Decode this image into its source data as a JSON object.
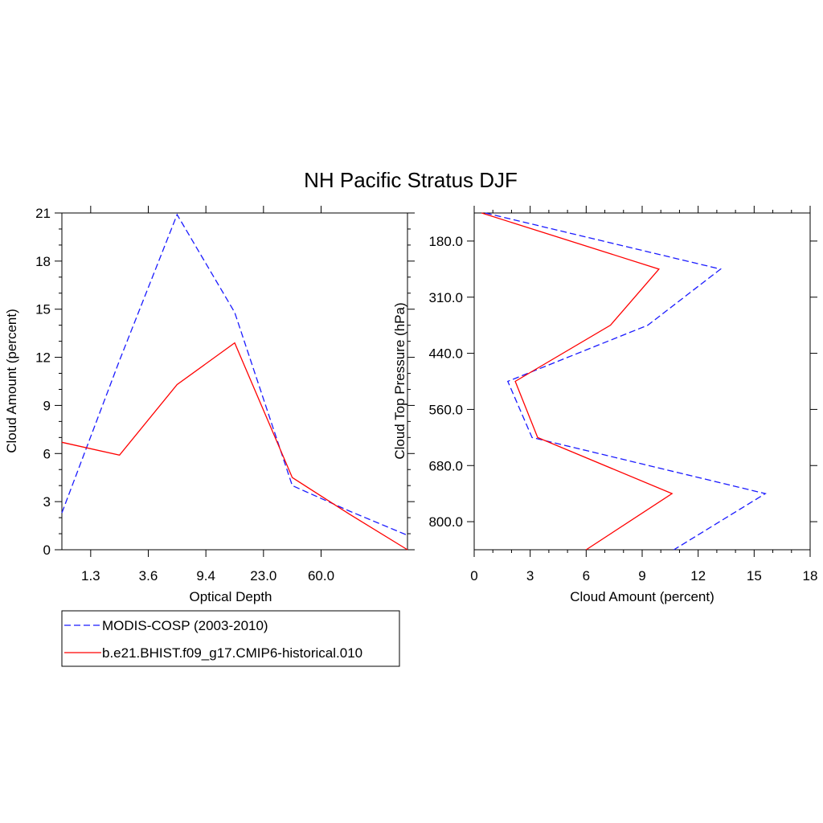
{
  "title": "NH Pacific Stratus DJF",
  "chart_data": [
    {
      "type": "line",
      "xlabel": "Optical Depth",
      "ylabel": "Cloud Amount (percent)",
      "x_tick_labels": [
        "1.3",
        "3.6",
        "9.4",
        "23.0",
        "60.0"
      ],
      "y_tick_labels": [
        "0",
        "3",
        "6",
        "9",
        "12",
        "15",
        "18",
        "21"
      ],
      "ylim": [
        0,
        21
      ],
      "x": [
        1,
        2,
        3,
        4,
        5,
        6,
        7
      ],
      "series": [
        {
          "name": "MODIS-COSP (2003-2010)",
          "color": "#1a1aff",
          "dash": "dashed",
          "values": [
            2.3,
            11.8,
            20.9,
            14.8,
            4.0,
            2.4,
            0.9
          ]
        },
        {
          "name": "b.e21.BHIST.f09_g17.CMIP6-historical.010",
          "color": "#ff0000",
          "dash": "solid",
          "values": [
            6.7,
            5.9,
            10.3,
            12.9,
            4.5,
            2.2,
            0.0
          ]
        }
      ]
    },
    {
      "type": "line",
      "xlabel": "Cloud Amount (percent)",
      "ylabel": "Cloud Top Pressure (hPa)",
      "x_tick_labels": [
        "0",
        "3",
        "6",
        "9",
        "12",
        "15",
        "18"
      ],
      "y_tick_labels": [
        "180.0",
        "310.0",
        "440.0",
        "560.0",
        "680.0",
        "800.0"
      ],
      "xlim": [
        0,
        18
      ],
      "y": [
        1,
        2,
        3,
        4,
        5,
        6,
        7
      ],
      "series": [
        {
          "name": "MODIS-COSP (2003-2010)",
          "color": "#1a1aff",
          "dash": "dashed",
          "values": [
            0.6,
            13.2,
            9.3,
            1.8,
            3.1,
            15.6,
            10.7
          ]
        },
        {
          "name": "b.e21.BHIST.f09_g17.CMIP6-historical.010",
          "color": "#ff0000",
          "dash": "solid",
          "values": [
            0.4,
            9.9,
            7.3,
            2.2,
            3.4,
            10.6,
            6.0
          ]
        }
      ]
    }
  ],
  "legend": {
    "items": [
      {
        "label": "MODIS-COSP (2003-2010)",
        "color": "#1a1aff",
        "dash": "dashed"
      },
      {
        "label": "b.e21.BHIST.f09_g17.CMIP6-historical.010",
        "color": "#ff0000",
        "dash": "solid"
      }
    ]
  }
}
